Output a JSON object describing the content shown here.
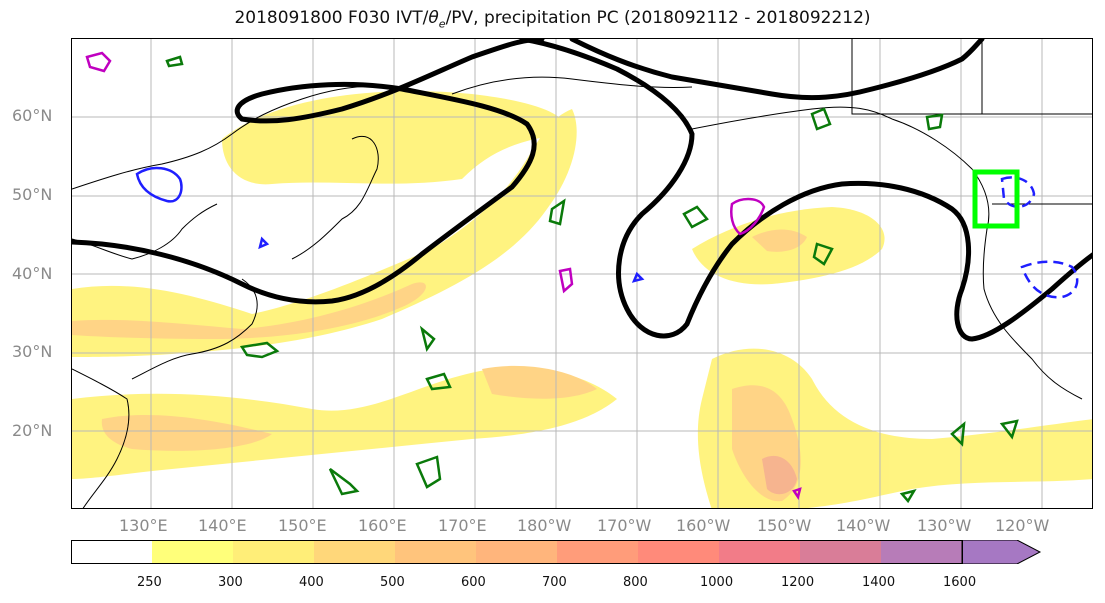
{
  "title": {
    "main": "2018091800 F030 IVT/",
    "theta": "θ",
    "theta_sub": "e",
    "rest": "/PV, precipitation PC (2018092112 - 2018092212)"
  },
  "map": {
    "lat_labels": [
      "60°N",
      "50°N",
      "40°N",
      "30°N",
      "20°N"
    ],
    "lon_labels": [
      "130°E",
      "140°E",
      "150°E",
      "160°E",
      "170°E",
      "180°W",
      "170°W",
      "160°W",
      "150°W",
      "140°W",
      "130°W",
      "120°W"
    ],
    "ivt_fill_color": "#fff37a",
    "ivt_mid_color": "#ffd280",
    "ivt_high_color": "#f6b08a",
    "pv_contour_color": "#000000",
    "theta_positive_color": "#0a7a0a",
    "theta_negative_color": "#1f1fff",
    "pv_anomaly_color": "#c000c0",
    "target_box_color": "#00ff00"
  },
  "colorbar": {
    "ticks": [
      "250",
      "300",
      "400",
      "500",
      "600",
      "700",
      "800",
      "1000",
      "1200",
      "1400",
      "1600"
    ],
    "colors": [
      "#ffffff",
      "#ffff7a",
      "#ffee78",
      "#ffd77a",
      "#ffc47c",
      "#ffb57c",
      "#ff9c7a",
      "#ff8a7a",
      "#f27c88",
      "#d97d98",
      "#b77cb8",
      "#a678c3"
    ]
  }
}
